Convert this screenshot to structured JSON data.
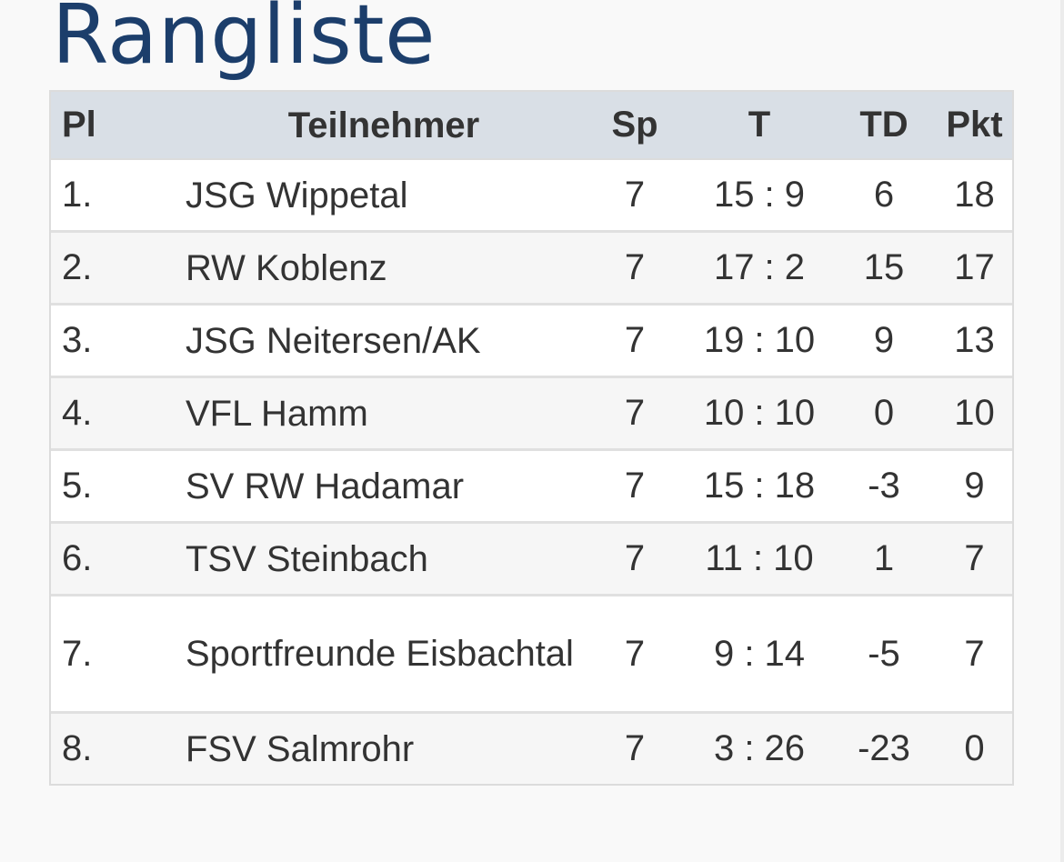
{
  "page": {
    "title": "Rangliste"
  },
  "table": {
    "headers": {
      "pl": "Pl",
      "name": "Teilnehmer",
      "sp": "Sp",
      "t": "T",
      "td": "TD",
      "pkt": "Pkt"
    },
    "rows": [
      {
        "pl": "1.",
        "name": "JSG Wippetal",
        "sp": "7",
        "t": "15 : 9",
        "td": "6",
        "pkt": "18"
      },
      {
        "pl": "2.",
        "name": "RW Koblenz",
        "sp": "7",
        "t": "17 : 2",
        "td": "15",
        "pkt": "17"
      },
      {
        "pl": "3.",
        "name": "JSG Neitersen/AK",
        "sp": "7",
        "t": "19 : 10",
        "td": "9",
        "pkt": "13"
      },
      {
        "pl": "4.",
        "name": "VFL Hamm",
        "sp": "7",
        "t": "10 : 10",
        "td": "0",
        "pkt": "10"
      },
      {
        "pl": "5.",
        "name": "SV RW Hadamar",
        "sp": "7",
        "t": "15 : 18",
        "td": "-3",
        "pkt": "9"
      },
      {
        "pl": "6.",
        "name": "TSV Steinbach",
        "sp": "7",
        "t": "11 : 10",
        "td": "1",
        "pkt": "7"
      },
      {
        "pl": "7.",
        "name": "Sportfreunde Eisbachtal",
        "sp": "7",
        "t": "9 : 14",
        "td": "-5",
        "pkt": "7"
      },
      {
        "pl": "8.",
        "name": "FSV Salmrohr",
        "sp": "7",
        "t": "3 : 26",
        "td": "-23",
        "pkt": "0"
      }
    ]
  },
  "colors": {
    "title": "#1c3e6b",
    "header_bg": "#d9dfe6",
    "text": "#333333",
    "row_alt_bg": "#f6f6f6",
    "page_bg": "#f9f9f9"
  }
}
